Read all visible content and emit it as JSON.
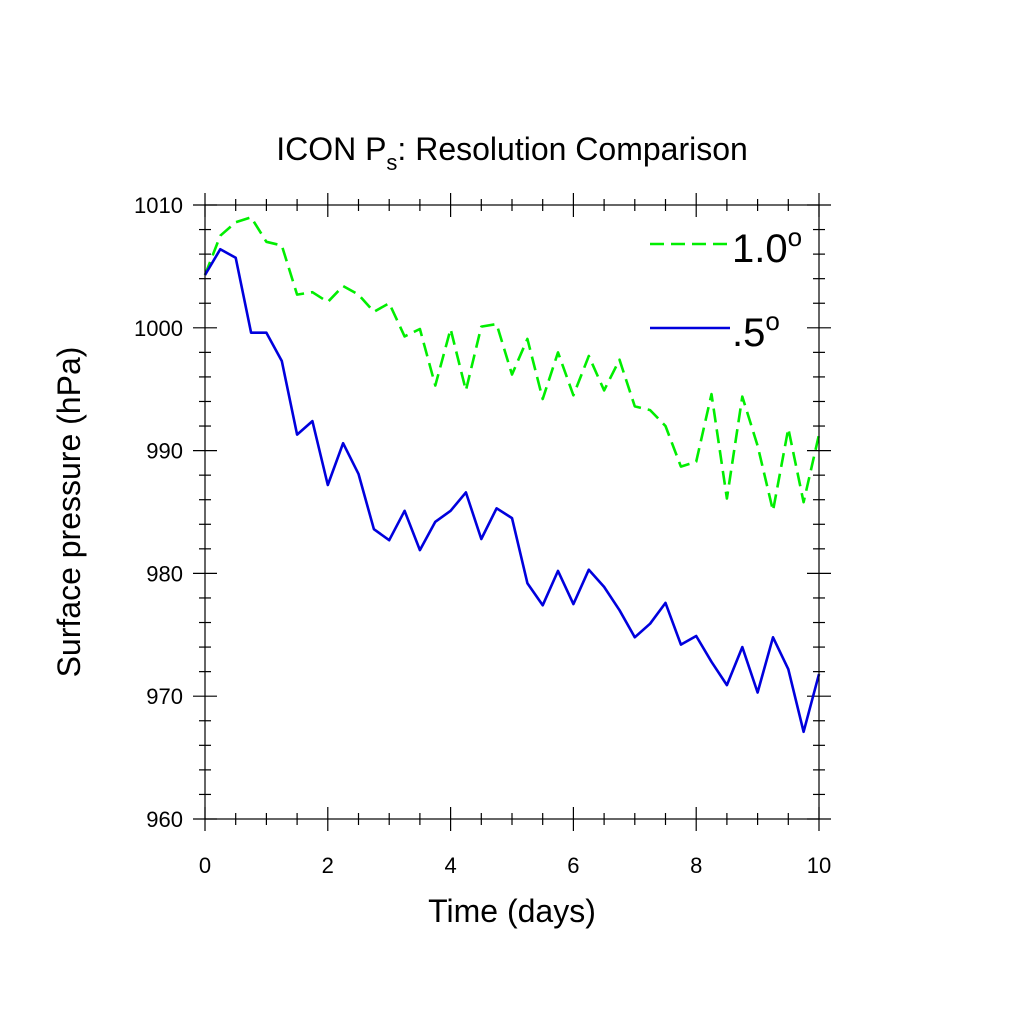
{
  "chart_data": {
    "type": "line",
    "title": "ICON P",
    "title_subscript": "s",
    "title_suffix": ": Resolution Comparison",
    "xlabel": "Time (days)",
    "ylabel": "Surface pressure (hPa)",
    "xlim": [
      0,
      10
    ],
    "ylim": [
      960,
      1010
    ],
    "xticks": [
      0,
      2,
      4,
      6,
      8,
      10
    ],
    "xtick_labels": [
      "0",
      "2",
      "4",
      "6",
      "8",
      "10"
    ],
    "yticks": [
      960,
      970,
      980,
      990,
      1000,
      1010
    ],
    "ytick_labels": [
      "960",
      "970",
      "980",
      "990",
      "1000",
      "1010"
    ],
    "grid": false,
    "legend_position": "top-right",
    "series": [
      {
        "name": "1.0",
        "name_superscript": "o",
        "color": "#00ee00",
        "dash": "dashed",
        "x": [
          0,
          0.25,
          0.5,
          0.75,
          1,
          1.25,
          1.5,
          1.75,
          2,
          2.25,
          2.5,
          2.75,
          3,
          3.25,
          3.5,
          3.75,
          4,
          4.25,
          4.5,
          4.75,
          5,
          5.25,
          5.5,
          5.75,
          6,
          6.25,
          6.5,
          6.75,
          7,
          7.25,
          7.5,
          7.75,
          8,
          8.25,
          8.5,
          8.75,
          9,
          9.25,
          9.5,
          9.75,
          10
        ],
        "y": [
          1004.3,
          1007.5,
          1008.6,
          1009.0,
          1007.0,
          1006.7,
          1002.7,
          1002.9,
          1002.1,
          1003.4,
          1002.7,
          1001.3,
          1002.0,
          999.3,
          999.9,
          995.3,
          999.9,
          994.9,
          1000.1,
          1000.3,
          996.2,
          999.1,
          994.2,
          998.0,
          994.5,
          997.7,
          994.9,
          997.4,
          993.6,
          993.3,
          992.0,
          988.7,
          989.1,
          994.6,
          986.1,
          994.4,
          990.4,
          985.1,
          991.8,
          985.8,
          991.3
        ]
      },
      {
        "name": ".5",
        "name_superscript": "o",
        "color": "#0000dd",
        "dash": "solid",
        "x": [
          0,
          0.25,
          0.5,
          0.75,
          1,
          1.25,
          1.5,
          1.75,
          2,
          2.25,
          2.5,
          2.75,
          3,
          3.25,
          3.5,
          3.75,
          4,
          4.25,
          4.5,
          4.75,
          5,
          5.25,
          5.5,
          5.75,
          6,
          6.25,
          6.5,
          6.75,
          7,
          7.25,
          7.5,
          7.75,
          8,
          8.25,
          8.5,
          8.75,
          9,
          9.25,
          9.5,
          9.75,
          10
        ],
        "y": [
          1004.3,
          1006.4,
          1005.7,
          999.6,
          999.6,
          997.3,
          991.3,
          992.4,
          987.2,
          990.6,
          988.1,
          983.6,
          982.7,
          985.1,
          981.9,
          984.2,
          985.1,
          986.6,
          982.8,
          985.3,
          984.5,
          979.2,
          977.4,
          980.2,
          977.5,
          980.3,
          978.9,
          977.0,
          974.8,
          975.9,
          977.6,
          974.2,
          974.9,
          972.8,
          970.9,
          974.0,
          970.3,
          974.8,
          972.2,
          967.1,
          971.8
        ]
      }
    ]
  }
}
